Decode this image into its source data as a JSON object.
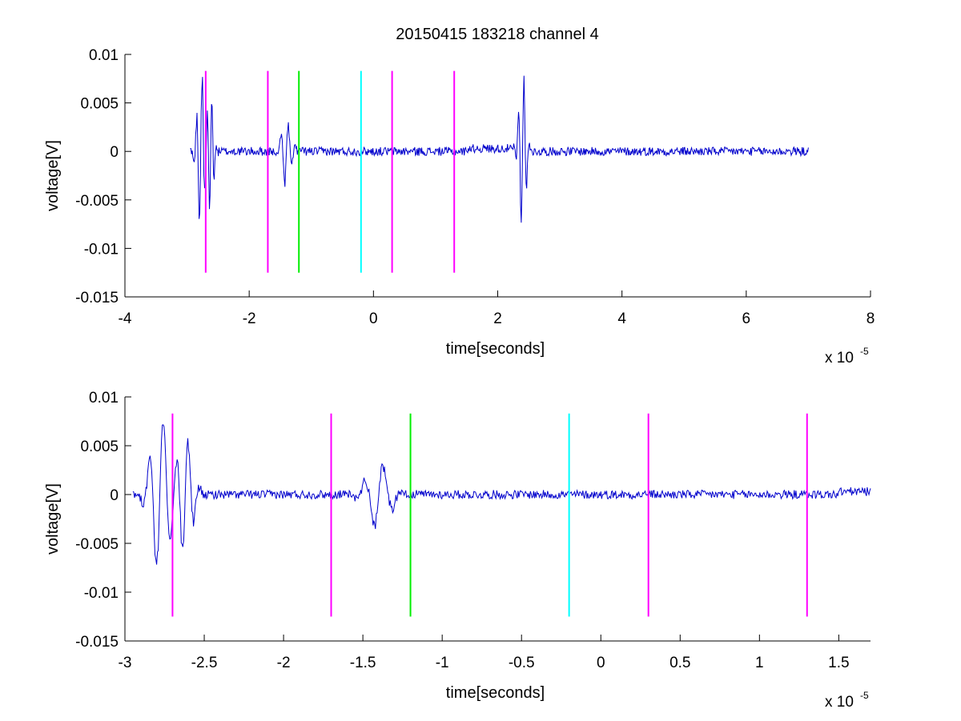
{
  "chart_data": [
    {
      "type": "line",
      "title": "20150415 183218 channel 4",
      "xlabel": "time[seconds]",
      "ylabel": "voltage[V]",
      "xlim": [
        -4e-05,
        8e-05
      ],
      "ylim": [
        -0.015,
        0.01
      ],
      "x_scale_label": "x 10",
      "x_scale_exponent": "-5",
      "x_ticks": [
        -4e-05,
        -2e-05,
        0,
        2e-05,
        4e-05,
        6e-05,
        8e-05
      ],
      "x_tick_labels": [
        "-4",
        "-2",
        "0",
        "2",
        "4",
        "6",
        "8"
      ],
      "y_ticks": [
        0.01,
        0.005,
        0,
        -0.005,
        -0.01,
        -0.015
      ],
      "y_tick_labels": [
        "0.01",
        "0.005",
        "0",
        "-0.005",
        "-0.01",
        "-0.015"
      ],
      "grid": false,
      "series_color": "#0000cc",
      "signal_range": [
        -2.95e-05,
        7e-05
      ],
      "bursts": [
        {
          "t": -2.78e-05,
          "amp": 0.0085,
          "width": 6e-07
        },
        {
          "t": -2.62e-05,
          "amp": 0.006,
          "width": 5e-07
        },
        {
          "t": -1.4e-05,
          "amp": 0.0032,
          "width": 8e-07
        },
        {
          "t": 2.4e-05,
          "amp": 0.0085,
          "width": 6e-07
        }
      ],
      "markers": [
        {
          "x": -2.7e-05,
          "color": "#ff00ff"
        },
        {
          "x": -1.7e-05,
          "color": "#ff00ff"
        },
        {
          "x": -1.2e-05,
          "color": "#00ee00"
        },
        {
          "x": -2e-06,
          "color": "#00ffff"
        },
        {
          "x": 3e-06,
          "color": "#ff00ff"
        },
        {
          "x": 1.3e-05,
          "color": "#ff00ff"
        }
      ],
      "marker_yrange": [
        -0.0125,
        0.0083
      ]
    },
    {
      "type": "line",
      "title": "",
      "xlabel": "time[seconds]",
      "ylabel": "voltage[V]",
      "xlim": [
        -3e-05,
        1.7e-05
      ],
      "ylim": [
        -0.015,
        0.01
      ],
      "x_scale_label": "x 10",
      "x_scale_exponent": "-5",
      "x_ticks": [
        -3e-05,
        -2.5e-05,
        -2e-05,
        -1.5e-05,
        -1e-05,
        -5e-06,
        0,
        5e-06,
        1e-05,
        1.5e-05
      ],
      "x_tick_labels": [
        "-3",
        "-2.5",
        "-2",
        "-1.5",
        "-1",
        "-0.5",
        "0",
        "0.5",
        "1",
        "1.5"
      ],
      "y_ticks": [
        0.01,
        0.005,
        0,
        -0.005,
        -0.01,
        -0.015
      ],
      "y_tick_labels": [
        "0.01",
        "0.005",
        "0",
        "-0.005",
        "-0.01",
        "-0.015"
      ],
      "grid": false,
      "series_color": "#0000cc",
      "signal_range": [
        -2.95e-05,
        1.7e-05
      ],
      "bursts": [
        {
          "t": -2.78e-05,
          "amp": 0.0085,
          "width": 6e-07
        },
        {
          "t": -2.62e-05,
          "amp": 0.006,
          "width": 5e-07
        },
        {
          "t": -1.4e-05,
          "amp": 0.0032,
          "width": 8e-07
        }
      ],
      "markers": [
        {
          "x": -2.7e-05,
          "color": "#ff00ff"
        },
        {
          "x": -1.7e-05,
          "color": "#ff00ff"
        },
        {
          "x": -1.2e-05,
          "color": "#00ee00"
        },
        {
          "x": -2e-06,
          "color": "#00ffff"
        },
        {
          "x": 3e-06,
          "color": "#ff00ff"
        },
        {
          "x": 1.3e-05,
          "color": "#ff00ff"
        }
      ],
      "marker_yrange": [
        -0.0125,
        0.0083
      ]
    }
  ]
}
